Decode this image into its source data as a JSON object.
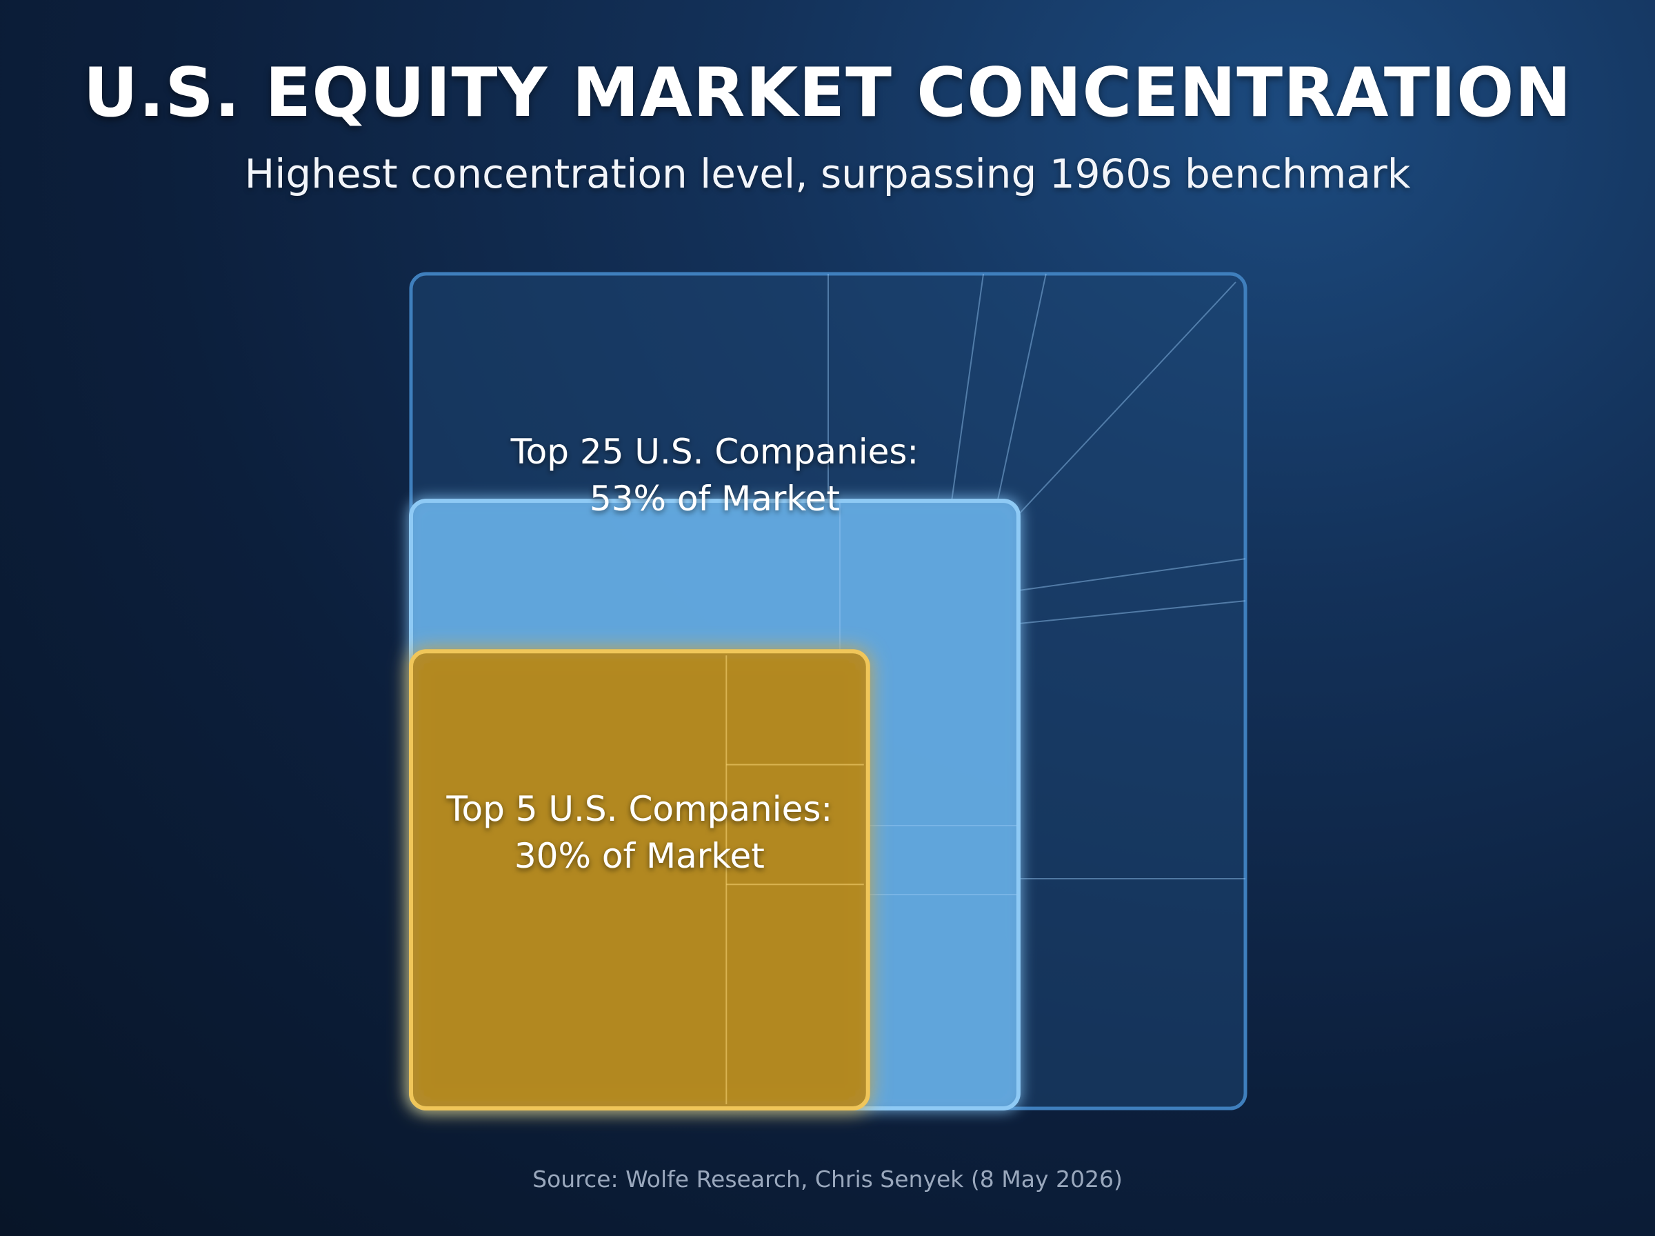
{
  "title": "U.S. EQUITY MARKET CONCENTRATION",
  "subtitle": "Highest concentration level, surpassing 1960s benchmark",
  "source": "Source: Wolfe Research, Chris Senyek (8 May 2026)",
  "chart_data": {
    "type": "nested-square",
    "total_share_pct": 100,
    "levels": [
      {
        "label_lines": [],
        "share_pct": 100,
        "color": "#1a3d66",
        "stroke": "#3f7fbd"
      },
      {
        "label_lines": [
          "Top 25 U.S. Companies:",
          "53% of Market"
        ],
        "share_pct": 53,
        "color": "#5a9ccc",
        "stroke": "#8fcaf5"
      },
      {
        "label_lines": [
          "Top 5 U.S. Companies:",
          "30% of Market"
        ],
        "share_pct": 30,
        "color": "#a8801f",
        "stroke": "#f0c65a"
      }
    ]
  }
}
